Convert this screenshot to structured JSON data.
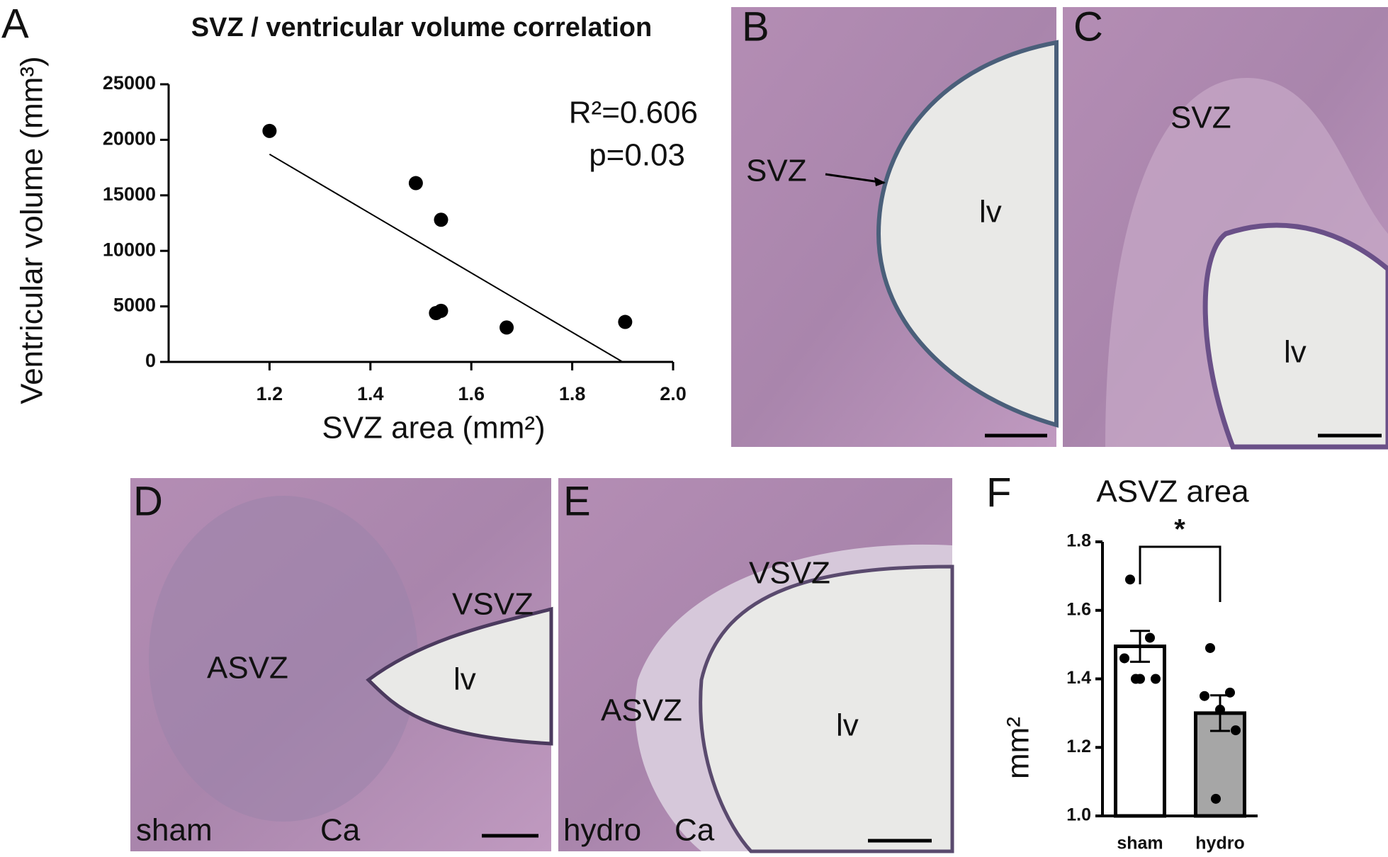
{
  "panels": [
    {
      "letter": "A"
    },
    {
      "letter": "B",
      "labels": [
        "SVZ",
        "lv"
      ]
    },
    {
      "letter": "C",
      "labels": [
        "SVZ",
        "lv"
      ]
    },
    {
      "letter": "D",
      "labels": [
        "VSVZ",
        "ASVZ",
        "lv",
        "sham",
        "Ca"
      ]
    },
    {
      "letter": "E",
      "labels": [
        "VSVZ",
        "ASVZ",
        "lv",
        "hydro",
        "Ca"
      ]
    },
    {
      "letter": "F"
    }
  ],
  "chart_data": [
    {
      "type": "scatter",
      "title": "SVZ / ventricular volume correlation",
      "xlabel": "SVZ area (mm²)",
      "ylabel": "Ventricular volume (mm³)",
      "annotations": [
        "R²=0.606",
        "p=0.03"
      ],
      "x": [
        1.2,
        1.49,
        1.54,
        1.53,
        1.54,
        1.67,
        1.905
      ],
      "values": [
        20800,
        16100,
        12800,
        4400,
        4600,
        3100,
        3600
      ],
      "color": "#000000",
      "trendline": {
        "x": [
          1.2,
          1.9
        ],
        "values": [
          18700,
          0
        ]
      },
      "xlim": [
        1.0,
        2.0
      ],
      "xticks": [
        1.2,
        1.4,
        1.6,
        1.8,
        {
          "value": 2,
          "label": "2.0"
        }
      ],
      "ylim": [
        0,
        25000
      ],
      "yticks": [
        0,
        5000,
        10000,
        15000,
        20000,
        25000
      ]
    },
    {
      "type": "bar",
      "title": "ASVZ area",
      "ylabel": "mm²",
      "categories": [
        "sham",
        "hydro"
      ],
      "values": [
        1.495,
        1.3
      ],
      "errors": [
        0.045,
        0.052
      ],
      "colors": [
        "#ffffff",
        "#a6a6a6"
      ],
      "points": [
        [
          1.69,
          1.52,
          1.46,
          1.4,
          1.4,
          1.4
        ],
        [
          1.49,
          1.36,
          1.35,
          1.31,
          1.25,
          1.05
        ]
      ],
      "significance": "*",
      "ylim": [
        1.0,
        1.8
      ],
      "yticks": [
        {
          "value": 1,
          "label": "1.0"
        },
        1.2,
        1.4,
        1.6,
        {
          "value": 1.8,
          "label": "1.8"
        }
      ]
    }
  ]
}
